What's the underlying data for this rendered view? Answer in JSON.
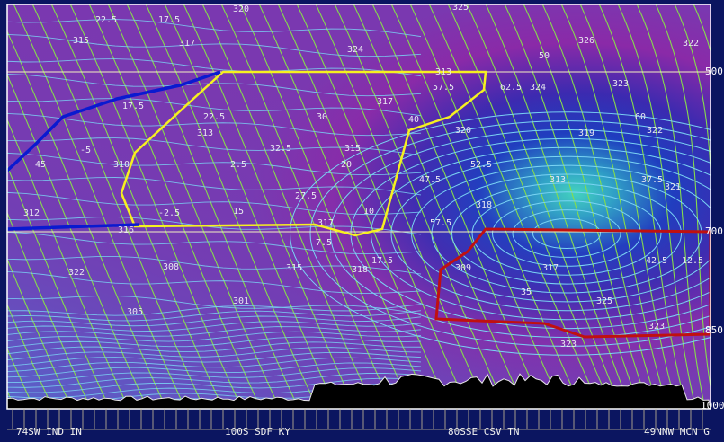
{
  "pressure_labels": [
    "500",
    "700",
    "850",
    "1000"
  ],
  "locations": [
    "74SW IND IN",
    "100S SDF KY",
    "80SSE CSV TN",
    "49NNW MCN G"
  ],
  "contour_labels": [
    "315",
    "317",
    "320",
    "324",
    "325",
    "326",
    "322",
    "324",
    "323",
    "322",
    "321",
    "319",
    "317",
    "315",
    "313",
    "310",
    "312",
    "316",
    "317",
    "318",
    "313",
    "320",
    "313",
    "315",
    "318",
    "317",
    "309",
    "308",
    "301",
    "305",
    "322",
    "325",
    "323",
    "323",
    "12.5",
    "22.5",
    "17.5",
    "17.5",
    "22.5",
    "32.5",
    "30",
    "20",
    "27.5",
    "10",
    "15",
    "2.5",
    "-2.5",
    "-5",
    "45",
    "40",
    "47.5",
    "52.5",
    "57.5",
    "62.5",
    "60",
    "50",
    "37.5",
    "57.5",
    "42.5",
    "35",
    "17.5",
    "7.5"
  ]
}
